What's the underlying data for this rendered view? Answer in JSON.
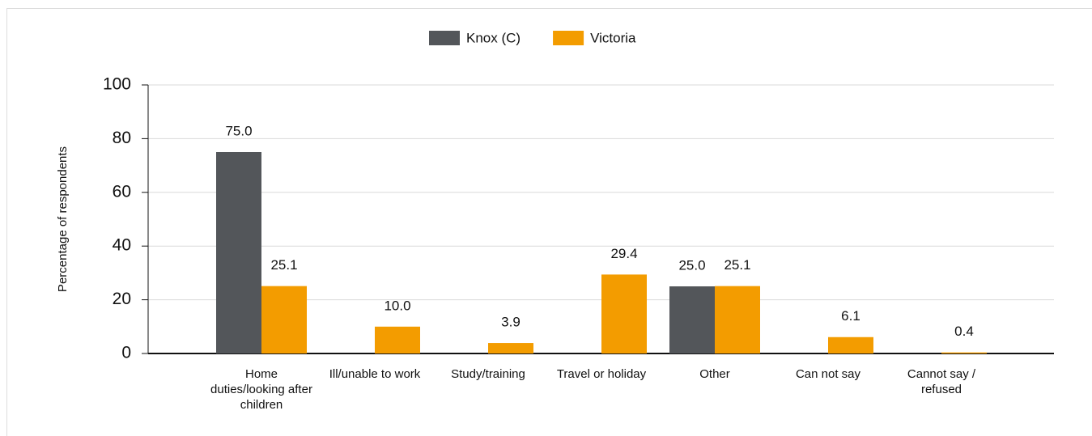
{
  "chart_data": {
    "type": "bar",
    "categories": [
      "Home duties/looking after children",
      "Ill/unable to work",
      "Study/training",
      "Travel or holiday",
      "Other",
      "Can not say",
      "Cannot say / refused"
    ],
    "series": [
      {
        "name": "Knox (C)",
        "color": "#53565a",
        "values": [
          75,
          null,
          null,
          null,
          25,
          null,
          null
        ],
        "value_labels": [
          "75.0",
          null,
          null,
          null,
          "25.0",
          null,
          null
        ]
      },
      {
        "name": "Victoria",
        "color": "#f39c00",
        "values": [
          25.1,
          10,
          3.9,
          29.4,
          25.1,
          6.1,
          0.4
        ],
        "value_labels": [
          "25.1",
          "10.0",
          "3.9",
          "29.4",
          "25.1",
          "6.1",
          "0.4"
        ]
      }
    ],
    "y_label": "Percentage of respondents",
    "ylim": [
      0,
      100
    ],
    "yticks": [
      0,
      20,
      40,
      60,
      80,
      100
    ],
    "grid": true,
    "legend": "top"
  }
}
